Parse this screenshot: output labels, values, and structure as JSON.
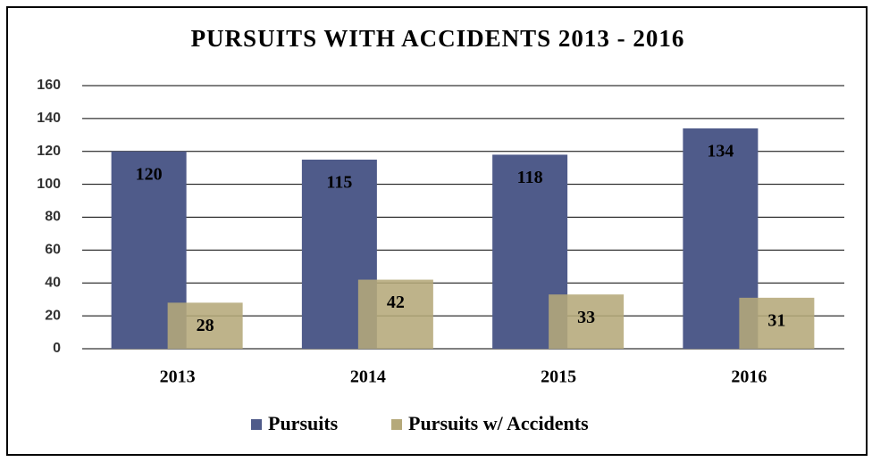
{
  "chart_data": {
    "type": "bar",
    "title": "PURSUITS WITH ACCIDENTS 2013 - 2016",
    "categories": [
      "2013",
      "2014",
      "2015",
      "2016"
    ],
    "series": [
      {
        "name": "Pursuits",
        "color": "#4f5b8a",
        "values": [
          120,
          115,
          118,
          134
        ]
      },
      {
        "name": "Pursuits w/ Accidents",
        "color": "#b5a97a",
        "values": [
          28,
          42,
          33,
          31
        ]
      }
    ],
    "ylim": [
      0,
      160
    ],
    "yticks": [
      0,
      20,
      40,
      60,
      80,
      100,
      120,
      140,
      160
    ],
    "grid": true,
    "legend": "bottom"
  }
}
